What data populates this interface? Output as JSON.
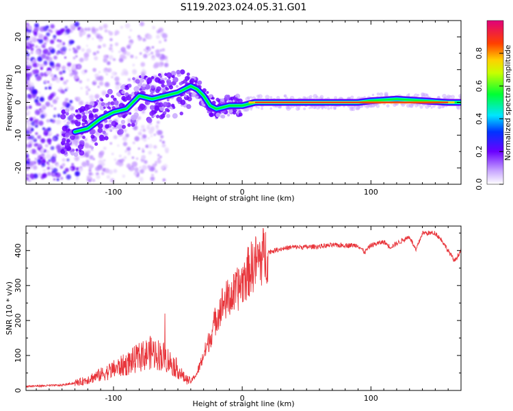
{
  "title": "S119.2023.024.05.31.G01",
  "chart_data": [
    {
      "type": "heatmap",
      "xlabel": "Height of straight line (km)",
      "ylabel": "Frequency (Hz)",
      "xlim": [
        -168,
        170
      ],
      "ylim": [
        -25,
        25
      ],
      "xticks": [
        -100,
        0,
        100
      ],
      "yticks": [
        -20,
        -10,
        0,
        10,
        20
      ],
      "colorbar": {
        "label": "Normalized spectral amplitude",
        "ticks": [
          "0.0",
          "0.2",
          "0.4",
          "0.6",
          "0.8"
        ],
        "range": [
          0,
          1
        ]
      },
      "ridge": {
        "x": [
          -130,
          -120,
          -110,
          -100,
          -90,
          -80,
          -70,
          -60,
          -50,
          -40,
          -35,
          -30,
          -25,
          -20,
          -10,
          0,
          10,
          50,
          90,
          100,
          120,
          140,
          160,
          170
        ],
        "y": [
          -9,
          -8,
          -5,
          -3,
          -2,
          2,
          1,
          2,
          3,
          5,
          4,
          2,
          -1,
          -2,
          -1,
          -1,
          0,
          0,
          0,
          0.5,
          1,
          0.5,
          0,
          0
        ]
      }
    },
    {
      "type": "line",
      "xlabel": "Height of straight line (km)",
      "ylabel": "SNR (10 * v/v)",
      "xlim": [
        -168,
        170
      ],
      "ylim": [
        0,
        470
      ],
      "xticks": [
        -100,
        0,
        100
      ],
      "yticks": [
        0,
        100,
        200,
        300,
        400
      ],
      "color": "#e8343a",
      "envelope": {
        "x": [
          -168,
          -140,
          -125,
          -110,
          -100,
          -90,
          -80,
          -70,
          -60,
          -50,
          -45,
          -40,
          -35,
          -30,
          -25,
          -20,
          -15,
          -10,
          -5,
          0,
          5,
          10,
          15,
          20,
          25,
          30,
          40,
          50,
          60,
          70,
          80,
          90,
          95,
          100,
          110,
          115,
          120,
          125,
          130,
          135,
          140,
          145,
          150,
          155,
          160,
          165,
          170
        ],
        "y": [
          12,
          15,
          25,
          45,
          60,
          75,
          95,
          110,
          95,
          60,
          35,
          25,
          50,
          100,
          150,
          210,
          250,
          265,
          280,
          310,
          340,
          365,
          380,
          395,
          400,
          405,
          410,
          410,
          412,
          415,
          415,
          415,
          395,
          415,
          425,
          410,
          420,
          430,
          440,
          400,
          450,
          450,
          450,
          430,
          400,
          370,
          400
        ]
      }
    }
  ]
}
